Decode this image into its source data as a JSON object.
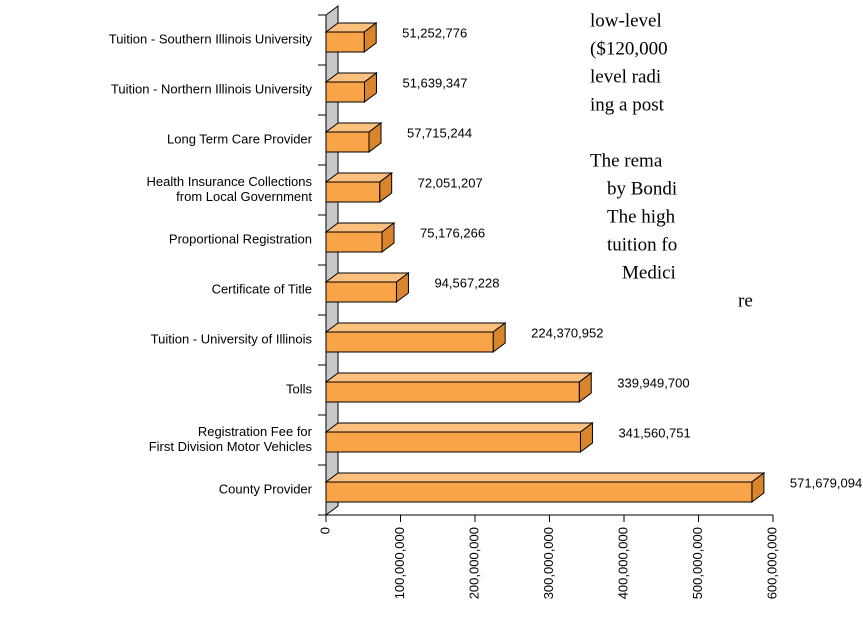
{
  "chart_data": {
    "type": "bar3d_horizontal",
    "categories": [
      "Tuition - Southern Illinois University",
      "Tuition - Northern Illinois University",
      "Long Term Care Provider",
      [
        "Health Insurance Collections",
        "from Local Government"
      ],
      "Proportional Registration",
      "Certificate of Title",
      "Tuition - University of Illinois",
      "Tolls",
      [
        "Registration Fee for",
        "First Division Motor Vehicles"
      ],
      "County Provider"
    ],
    "values": [
      51252776,
      51639347,
      57715244,
      72051207,
      75176266,
      94567228,
      224370952,
      339949700,
      341560751,
      571679094
    ],
    "value_labels": [
      "51,252,776",
      "51,639,347",
      "57,715,244",
      "72,051,207",
      "75,176,266",
      "94,567,228",
      "224,370,952",
      "339,949,700",
      "341,560,751",
      "571,679,094"
    ],
    "color": "#f9a449",
    "xlim": [
      0,
      600000000
    ],
    "xticks": [
      0,
      {
        "value": 100000000,
        "label": "100,000,000"
      },
      {
        "value": 200000000,
        "label": "200,000,000"
      },
      {
        "value": 300000000,
        "label": "300,000,000"
      },
      {
        "value": 400000000,
        "label": "400,000,000"
      },
      {
        "value": 500000000,
        "label": "500,000,000"
      },
      {
        "value": 600000000,
        "label": "600,000,000"
      }
    ]
  },
  "text_lines": [
    "low-level",
    "($120,000",
    "level radi",
    "ing a post",
    "The rema",
    "by Bondi",
    "The high",
    "tuition fo",
    "Medici",
    "re"
  ]
}
